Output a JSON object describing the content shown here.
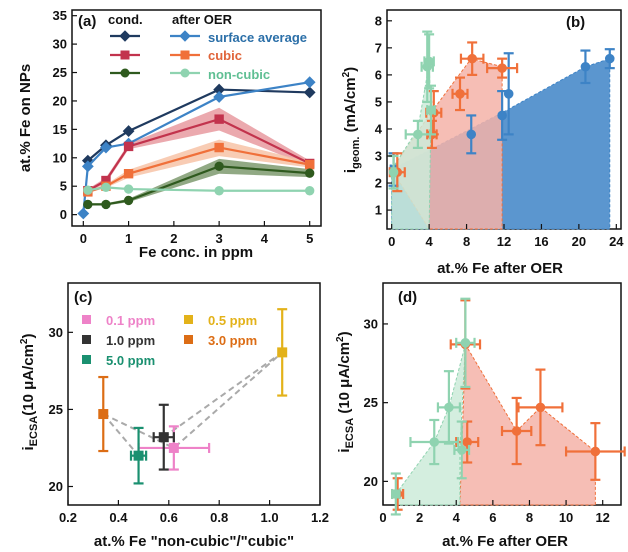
{
  "colors": {
    "surface_after": "#3d83c6",
    "surface_cond": "#1f3a5f",
    "cubic_after": "#f0703a",
    "cubic_cond": "#c2334d",
    "noncubic_after": "#8fd3b0",
    "noncubic_cond": "#2f5a1e",
    "blue_fill": "#5b96cf",
    "red_fill": "#f4b3a8",
    "green_fill": "#cdebd9",
    "p01": "#ee82c8",
    "p10": "#333333",
    "p50": "#1a9070",
    "p05": "#e3b21a",
    "p30": "#dc6d15",
    "dash": "#aaaaaa"
  },
  "chart_data": [
    {
      "panel": "(a)",
      "type": "line",
      "xlabel": "Fe conc. in ppm",
      "ylabel": "at.% Fe on NPs",
      "xlim": [
        -0.25,
        5.25
      ],
      "ylim": [
        -2,
        36
      ],
      "xticks": [
        0,
        1,
        2,
        3,
        4,
        5
      ],
      "yticks": [
        0,
        5,
        10,
        15,
        20,
        25,
        30,
        35
      ],
      "legend_headers": [
        "cond.",
        "after OER"
      ],
      "legend_labels": [
        "surface average",
        "cubic",
        "non-cubic"
      ],
      "x": [
        0,
        0.1,
        0.5,
        1,
        3,
        5
      ],
      "series": [
        {
          "name": "surface average",
          "role": "cond.",
          "values": [
            null,
            9.5,
            12.2,
            14.7,
            22.0,
            21.5
          ],
          "marker": "diamond"
        },
        {
          "name": "surface average",
          "role": "after OER",
          "values": [
            0.2,
            8.5,
            11.8,
            12.5,
            20.7,
            23.3
          ],
          "marker": "diamond"
        },
        {
          "name": "cubic",
          "role": "cond.",
          "values": [
            null,
            4.2,
            6.0,
            12.0,
            16.8,
            9.0
          ],
          "low": [
            null,
            4.0,
            5.5,
            11.5,
            14.8,
            8.5
          ],
          "high": [
            null,
            4.5,
            6.5,
            12.5,
            18.8,
            9.5
          ],
          "marker": "square"
        },
        {
          "name": "cubic",
          "role": "after OER",
          "values": [
            null,
            4.0,
            5.0,
            7.2,
            11.8,
            8.8
          ],
          "low": [
            null,
            3.8,
            4.7,
            6.5,
            10.3,
            8.3
          ],
          "high": [
            null,
            4.2,
            5.3,
            7.9,
            13.2,
            9.3
          ],
          "marker": "square"
        },
        {
          "name": "non-cubic",
          "role": "cond.",
          "values": [
            null,
            1.8,
            1.8,
            2.5,
            8.5,
            7.3
          ],
          "low": [
            null,
            1.6,
            1.6,
            2.2,
            7.2,
            6.6
          ],
          "high": [
            null,
            2.0,
            2.0,
            2.8,
            9.8,
            8.0
          ],
          "marker": "circle"
        },
        {
          "name": "non-cubic",
          "role": "after OER",
          "values": [
            null,
            4.3,
            4.8,
            4.5,
            4.2,
            4.2
          ],
          "low": [
            null,
            4.1,
            4.5,
            4.2,
            3.9,
            3.9
          ],
          "high": [
            null,
            4.5,
            5.1,
            4.8,
            4.5,
            4.5
          ],
          "marker": "circle"
        }
      ]
    },
    {
      "panel": "(b)",
      "type": "area",
      "xlabel": "at.% Fe after OER",
      "ylabel": "i",
      "ylabel_sub": "geom.",
      "ylabel_tail": " (mA/cm",
      "ylabel_sup": "2",
      "ylabel_end": ")",
      "xlim": [
        -0.5,
        24.5
      ],
      "ylim": [
        0.3,
        8.4
      ],
      "xticks": [
        0,
        4,
        8,
        12,
        16,
        20,
        24
      ],
      "yticks": [
        1,
        2,
        3,
        4,
        5,
        6,
        7,
        8
      ],
      "regions": [
        {
          "name": "blue",
          "polygon": [
            [
              0,
              0.3
            ],
            [
              0,
              2.5
            ],
            [
              11.8,
              4.6
            ],
            [
              20.7,
              6.3
            ],
            [
              23.3,
              6.6
            ],
            [
              23.3,
              0.3
            ]
          ]
        },
        {
          "name": "red",
          "polygon": [
            [
              0,
              2.5
            ],
            [
              4.2,
              4.6
            ],
            [
              8.5,
              6.6
            ],
            [
              11.8,
              6.3
            ],
            [
              11.8,
              0.3
            ],
            [
              4.0,
              0.3
            ]
          ]
        },
        {
          "name": "green",
          "polygon": [
            [
              0,
              2.5
            ],
            [
              2.8,
              4.0
            ],
            [
              4.0,
              6.4
            ],
            [
              4.2,
              4.6
            ],
            [
              4.0,
              0.3
            ],
            [
              0,
              0.3
            ]
          ]
        }
      ],
      "points": [
        {
          "series": "surface average",
          "x": 0.2,
          "y": 2.5,
          "xerr": 0.3,
          "yerr": 0.6
        },
        {
          "series": "surface average",
          "x": 8.5,
          "y": 3.8,
          "xerr": 0.0,
          "yerr": 0.7
        },
        {
          "series": "surface average",
          "x": 11.8,
          "y": 4.5,
          "xerr": 0.0,
          "yerr": 0.9
        },
        {
          "series": "surface average",
          "x": 12.5,
          "y": 5.3,
          "xerr": 0.0,
          "yerr": 1.5
        },
        {
          "series": "surface average",
          "x": 20.7,
          "y": 6.3,
          "xerr": 0.0,
          "yerr": 0.6
        },
        {
          "series": "surface average",
          "x": 23.3,
          "y": 6.6,
          "xerr": 0.0,
          "yerr": 0.35
        },
        {
          "series": "cubic",
          "x": 0.6,
          "y": 2.4,
          "xerr": 0.8,
          "yerr": 0.7
        },
        {
          "series": "cubic",
          "x": 4.3,
          "y": 3.8,
          "xerr": 0.5,
          "yerr": 0.5
        },
        {
          "series": "cubic",
          "x": 4.5,
          "y": 4.6,
          "xerr": 0.8,
          "yerr": 0.8
        },
        {
          "series": "cubic",
          "x": 7.3,
          "y": 5.3,
          "xerr": 0.8,
          "yerr": 0.6
        },
        {
          "series": "cubic",
          "x": 8.6,
          "y": 6.6,
          "xerr": 1.2,
          "yerr": 0.6
        },
        {
          "series": "cubic",
          "x": 11.8,
          "y": 6.25,
          "xerr": 1.6,
          "yerr": 0.35
        },
        {
          "series": "non-cubic",
          "x": 0.2,
          "y": 2.4,
          "xerr": 0.2,
          "yerr": 0.6
        },
        {
          "series": "non-cubic",
          "x": 2.8,
          "y": 3.8,
          "xerr": 1.3,
          "yerr": 0.5
        },
        {
          "series": "non-cubic",
          "x": 3.8,
          "y": 6.3,
          "xerr": 0.6,
          "yerr": 1.3
        },
        {
          "series": "non-cubic",
          "x": 4.0,
          "y": 6.5,
          "xerr": 0.5,
          "yerr": 1.0
        },
        {
          "series": "non-cubic",
          "x": 4.2,
          "y": 4.7,
          "xerr": 0.4,
          "yerr": 0.9
        }
      ]
    },
    {
      "panel": "(c)",
      "type": "scatter",
      "xlabel": "at.% Fe \"non-cubic\"/\"cubic\"",
      "ylabel": "i",
      "ylabel_sub": "ECSA",
      "ylabel_tail": "(10 μA/cm",
      "ylabel_sup": "2",
      "ylabel_end": ")",
      "xlim": [
        0.2,
        1.2
      ],
      "ylim": [
        18.8,
        33.2
      ],
      "xticks": [
        0.2,
        0.4,
        0.6,
        0.8,
        1.0,
        1.2
      ],
      "xtick_labels": [
        "0.2",
        "0.4",
        "0.6",
        "0.8",
        "1.0",
        "1.2"
      ],
      "yticks": [
        20,
        25,
        30
      ],
      "legend": [
        {
          "label": "0.1 ppm",
          "color_key": "p01"
        },
        {
          "label": "0.5 ppm",
          "color_key": "p05"
        },
        {
          "label": "1.0 ppm",
          "color_key": "p10"
        },
        {
          "label": "3.0 ppm",
          "color_key": "p30"
        },
        {
          "label": "5.0 ppm",
          "color_key": "p50"
        }
      ],
      "points": [
        {
          "series": "0.1 ppm",
          "x": 0.62,
          "y": 22.5,
          "xerr": 0.14,
          "yerr": 1.4,
          "color_key": "p01"
        },
        {
          "series": "0.5 ppm",
          "x": 1.05,
          "y": 28.7,
          "xerr": 0.0,
          "yerr": 2.8,
          "color_key": "p05"
        },
        {
          "series": "1.0 ppm",
          "x": 0.58,
          "y": 23.2,
          "xerr": 0.04,
          "yerr": 2.1,
          "color_key": "p10"
        },
        {
          "series": "3.0 ppm",
          "x": 0.34,
          "y": 24.7,
          "xerr": 0.0,
          "yerr": 2.4,
          "color_key": "p30"
        },
        {
          "series": "5.0 ppm",
          "x": 0.48,
          "y": 22.0,
          "xerr": 0.03,
          "yerr": 1.8,
          "color_key": "p50"
        }
      ],
      "dashed_lines": [
        [
          [
            0.34,
            24.7
          ],
          [
            0.62,
            22.5
          ],
          [
            1.05,
            28.7
          ]
        ],
        [
          [
            0.58,
            23.2
          ],
          [
            1.05,
            28.7
          ]
        ],
        [
          [
            0.34,
            24.7
          ],
          [
            0.48,
            22.0
          ]
        ]
      ]
    },
    {
      "panel": "(d)",
      "type": "area",
      "xlabel": "at.% Fe after OER",
      "ylabel": "i",
      "ylabel_sub": "ECSA",
      "ylabel_tail": " (10 μA/cm",
      "ylabel_sup": "2",
      "ylabel_end": ")",
      "xlim": [
        0,
        13
      ],
      "ylim": [
        18.5,
        32.6
      ],
      "xticks": [
        0,
        2,
        4,
        6,
        8,
        10,
        12
      ],
      "yticks": [
        20,
        25,
        30
      ],
      "regions": [
        {
          "name": "red",
          "polygon": [
            [
              4.5,
              28.7
            ],
            [
              7.3,
              23.2
            ],
            [
              8.6,
              24.7
            ],
            [
              11.6,
              21.9
            ],
            [
              11.6,
              18.5
            ],
            [
              4.2,
              18.5
            ]
          ]
        },
        {
          "name": "green",
          "polygon": [
            [
              0.7,
              19.2
            ],
            [
              2.8,
              22.5
            ],
            [
              3.6,
              24.7
            ],
            [
              4.5,
              28.7
            ],
            [
              4.2,
              22.0
            ],
            [
              4.2,
              18.5
            ],
            [
              0.7,
              18.5
            ]
          ]
        }
      ],
      "points": [
        {
          "series": "cubic",
          "x": 0.8,
          "y": 19.2,
          "xerr": 0.3,
          "yerr": 1.0
        },
        {
          "series": "cubic",
          "x": 4.5,
          "y": 28.7,
          "xerr": 0.8,
          "yerr": 2.8
        },
        {
          "series": "cubic",
          "x": 4.6,
          "y": 22.5,
          "xerr": 0.6,
          "yerr": 1.3
        },
        {
          "series": "cubic",
          "x": 7.3,
          "y": 23.2,
          "xerr": 0.8,
          "yerr": 2.1
        },
        {
          "series": "cubic",
          "x": 8.6,
          "y": 24.7,
          "xerr": 1.2,
          "yerr": 2.4
        },
        {
          "series": "cubic",
          "x": 11.6,
          "y": 21.9,
          "xerr": 1.6,
          "yerr": 1.8
        },
        {
          "series": "non-cubic",
          "x": 0.7,
          "y": 19.2,
          "xerr": 0.2,
          "yerr": 1.3
        },
        {
          "series": "non-cubic",
          "x": 2.8,
          "y": 22.5,
          "xerr": 1.3,
          "yerr": 1.4
        },
        {
          "series": "non-cubic",
          "x": 3.6,
          "y": 24.7,
          "xerr": 0.6,
          "yerr": 2.3
        },
        {
          "series": "non-cubic",
          "x": 4.3,
          "y": 22.0,
          "xerr": 0.4,
          "yerr": 1.8
        },
        {
          "series": "non-cubic",
          "x": 4.5,
          "y": 28.8,
          "xerr": 0.5,
          "yerr": 2.8
        }
      ]
    }
  ]
}
